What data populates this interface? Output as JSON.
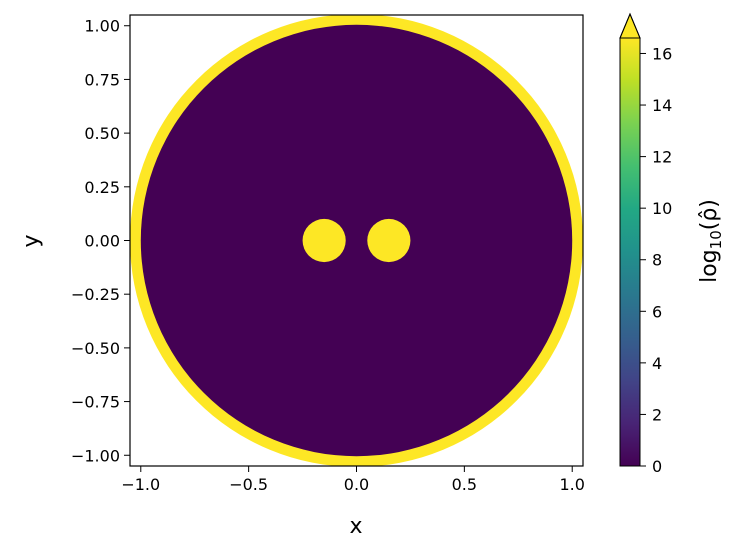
{
  "chart_data": {
    "type": "heatmap",
    "title": "",
    "xlabel": "x",
    "ylabel": "y",
    "xlim": [
      -1.05,
      1.05
    ],
    "ylim": [
      -1.05,
      1.05
    ],
    "x_ticks": [
      -1.0,
      -0.5,
      0.0,
      0.5,
      1.0
    ],
    "x_tick_labels": [
      "−1.0",
      "−0.5",
      "0.0",
      "0.5",
      "1.0"
    ],
    "y_ticks": [
      1.0,
      0.75,
      0.5,
      0.25,
      0.0,
      -0.25,
      -0.5,
      -0.75,
      -1.0
    ],
    "y_tick_labels": [
      "1.00",
      "0.75",
      "0.50",
      "0.25",
      "0.00",
      "−0.25",
      "−0.50",
      "−0.75",
      "−1.00"
    ],
    "regions": [
      {
        "shape": "annulus",
        "center": [
          0.0,
          0.0
        ],
        "inner_radius": 1.0,
        "outer_radius": 1.05,
        "value": 16.6
      },
      {
        "shape": "disk",
        "center": [
          0.0,
          0.0
        ],
        "radius": 1.0,
        "value": 0.0
      },
      {
        "shape": "disk",
        "center": [
          -0.15,
          0.0
        ],
        "radius": 0.1,
        "value": 16.6
      },
      {
        "shape": "disk",
        "center": [
          0.15,
          0.0
        ],
        "radius": 0.1,
        "value": 16.6
      }
    ],
    "colorbar": {
      "label": "log₁₀(ρ̂)",
      "label_base": "log",
      "label_sub": "10",
      "label_arg": "(ρ̂)",
      "range": [
        0,
        16.6
      ],
      "ticks": [
        0,
        2,
        4,
        6,
        8,
        10,
        12,
        14,
        16
      ],
      "tick_labels": [
        "0",
        "2",
        "4",
        "6",
        "8",
        "10",
        "12",
        "14",
        "16"
      ],
      "extend": "max",
      "colormap": "viridis"
    },
    "grid": false,
    "colors": {
      "low": "#440154",
      "high": "#fde725"
    }
  }
}
